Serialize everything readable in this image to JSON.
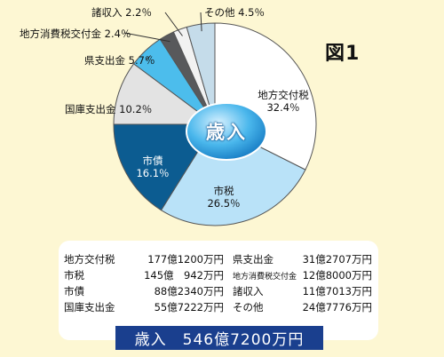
{
  "figure_label": "図1",
  "chart_data": {
    "type": "pie",
    "center_label": "歳入",
    "slices": [
      {
        "label": "地方交付税",
        "value": 32.4,
        "value_text": "32.4％",
        "color": "#ffffff"
      },
      {
        "label": "市税",
        "value": 26.5,
        "value_text": "26.5％",
        "color": "#b9e2f8"
      },
      {
        "label": "市債",
        "value": 16.1,
        "value_text": "16.1％",
        "color": "#0c5c91"
      },
      {
        "label": "国庫支出金",
        "value": 10.2,
        "value_text": "10.2％",
        "color": "#e3e3e3"
      },
      {
        "label": "県支出金",
        "value": 5.7,
        "value_text": "5.7％",
        "color": "#4cbdec"
      },
      {
        "label": "地方消費税交付金",
        "value": 2.4,
        "value_text": "2.4％",
        "color": "#58595b"
      },
      {
        "label": "諸収入",
        "value": 2.2,
        "value_text": "2.2％",
        "color": "#f2f2f2"
      },
      {
        "label": "その他",
        "value": 4.5,
        "value_text": "4.5％",
        "color": "#c5dcea"
      }
    ]
  },
  "breakdown_table": {
    "rows": [
      {
        "label1": "地方交付税",
        "value1": "177億1200万円",
        "label2": "県支出金",
        "value2": "31億2707万円"
      },
      {
        "label1": "市税",
        "value1": "145億　942万円",
        "label2": "地方消費税交付金",
        "value2": "12億8000万円"
      },
      {
        "label1": "市債",
        "value1": "88億2340万円",
        "label2": "諸収入",
        "value2": "11億7013万円"
      },
      {
        "label1": "国庫支出金",
        "value1": "55億7222万円",
        "label2": "その他",
        "value2": "24億7776万円"
      }
    ]
  },
  "total": "歳入　546億7200万円"
}
